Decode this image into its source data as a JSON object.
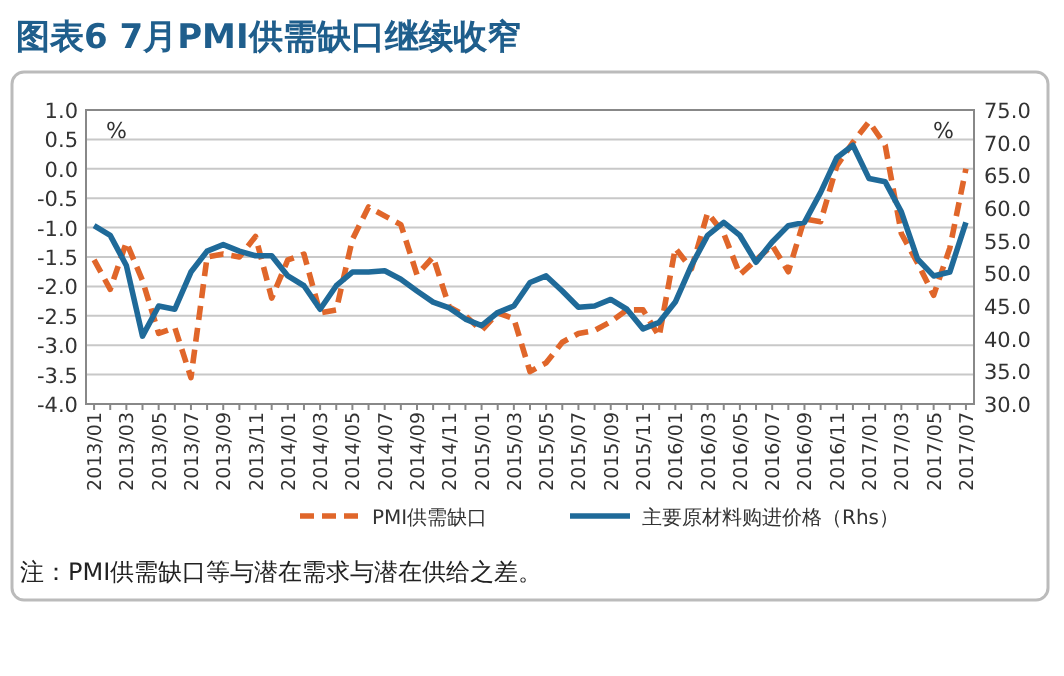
{
  "chart_data": {
    "type": "line",
    "title": "图表6 7月PMI供需缺口继续收窄",
    "categories": [
      "2013/01",
      null,
      "2013/03",
      null,
      "2013/05",
      null,
      "2013/07",
      null,
      "2013/09",
      null,
      "2013/11",
      null,
      "2014/01",
      null,
      "2014/03",
      null,
      "2014/05",
      null,
      "2014/07",
      null,
      "2014/09",
      null,
      "2014/11",
      null,
      "2015/01",
      null,
      "2015/03",
      null,
      "2015/05",
      null,
      "2015/07",
      null,
      "2015/09",
      null,
      "2015/11",
      null,
      "2016/01",
      null,
      "2016/03",
      null,
      "2016/05",
      null,
      "2016/07",
      null,
      "2016/09",
      null,
      "2016/11",
      null,
      "2017/01",
      null,
      "2017/03",
      null,
      "2017/05",
      null,
      "2017/07"
    ],
    "series": [
      {
        "name": "PMI供需缺口",
        "color": "#e0662a",
        "line_style": "dashed",
        "values": [
          -1.55,
          -2.05,
          -1.25,
          -1.9,
          -2.8,
          -2.7,
          -3.55,
          -1.5,
          -1.45,
          -1.5,
          -1.15,
          -2.2,
          -1.55,
          -1.45,
          -2.45,
          -2.4,
          -1.2,
          -0.65,
          -0.8,
          -0.95,
          -1.8,
          -1.5,
          -2.35,
          -2.5,
          -2.75,
          -2.45,
          -2.55,
          -3.45,
          -3.3,
          -2.95,
          -2.8,
          -2.75,
          -2.6,
          -2.4,
          -2.4,
          -2.85,
          -1.35,
          -1.7,
          -0.75,
          -1.1,
          -1.8,
          -1.55,
          -1.3,
          -1.75,
          -0.85,
          -0.9,
          0.05,
          0.45,
          0.8,
          0.4,
          -1.1,
          -1.6,
          -2.15,
          -1.35,
          0.0
        ]
      },
      {
        "name": "主要原材料购进价格（Rhs）",
        "color": "#1f6a99",
        "line_style": "solid",
        "axis": "y2",
        "values": [
          57.3,
          55.8,
          51.2,
          40.4,
          45.0,
          44.5,
          50.2,
          53.4,
          54.4,
          53.4,
          52.7,
          52.7,
          49.6,
          48.1,
          44.5,
          48.1,
          50.2,
          50.2,
          50.4,
          49.1,
          47.3,
          45.6,
          44.7,
          43.0,
          42.0,
          44.0,
          45.0,
          48.6,
          49.6,
          47.3,
          44.8,
          45.0,
          46.0,
          44.5,
          41.5,
          42.5,
          45.6,
          51.2,
          55.8,
          57.8,
          55.8,
          51.7,
          54.8,
          57.3,
          57.8,
          62.4,
          67.7,
          69.6,
          64.5,
          64.0,
          59.4,
          52.2,
          49.6,
          50.2,
          57.8
        ]
      }
    ],
    "ylabel": "%",
    "y2label": "%",
    "ylim": [
      -4,
      1
    ],
    "yticks": [
      {
        "value": -4,
        "label": "-4.0"
      },
      {
        "value": -3.5,
        "label": "-3.5"
      },
      {
        "value": -3,
        "label": "-3.0"
      },
      {
        "value": -2.5,
        "label": "-2.5"
      },
      {
        "value": -2,
        "label": "-2.0"
      },
      {
        "value": -1.5,
        "label": "-1.5"
      },
      {
        "value": -1,
        "label": "-1.0"
      },
      {
        "value": -0.5,
        "label": "-0.5"
      },
      {
        "value": 0,
        "label": "0.0"
      },
      {
        "value": 0.5,
        "label": "0.5"
      },
      {
        "value": 1,
        "label": "1.0"
      }
    ],
    "y2lim": [
      30,
      75
    ],
    "y2ticks": [
      {
        "value": 30,
        "label": "30.0"
      },
      {
        "value": 35,
        "label": "35.0"
      },
      {
        "value": 40,
        "label": "40.0"
      },
      {
        "value": 45,
        "label": "45.0"
      },
      {
        "value": 50,
        "label": "50.0"
      },
      {
        "value": 55,
        "label": "55.0"
      },
      {
        "value": 60,
        "label": "60.0"
      },
      {
        "value": 65,
        "label": "65.0"
      },
      {
        "value": 70,
        "label": "70.0"
      },
      {
        "value": 75,
        "label": "75.0"
      }
    ],
    "grid": "y",
    "legend": "bottom",
    "annotations": [
      "注：PMI供需缺口等与潜在需求与潜在供给之差。"
    ]
  }
}
